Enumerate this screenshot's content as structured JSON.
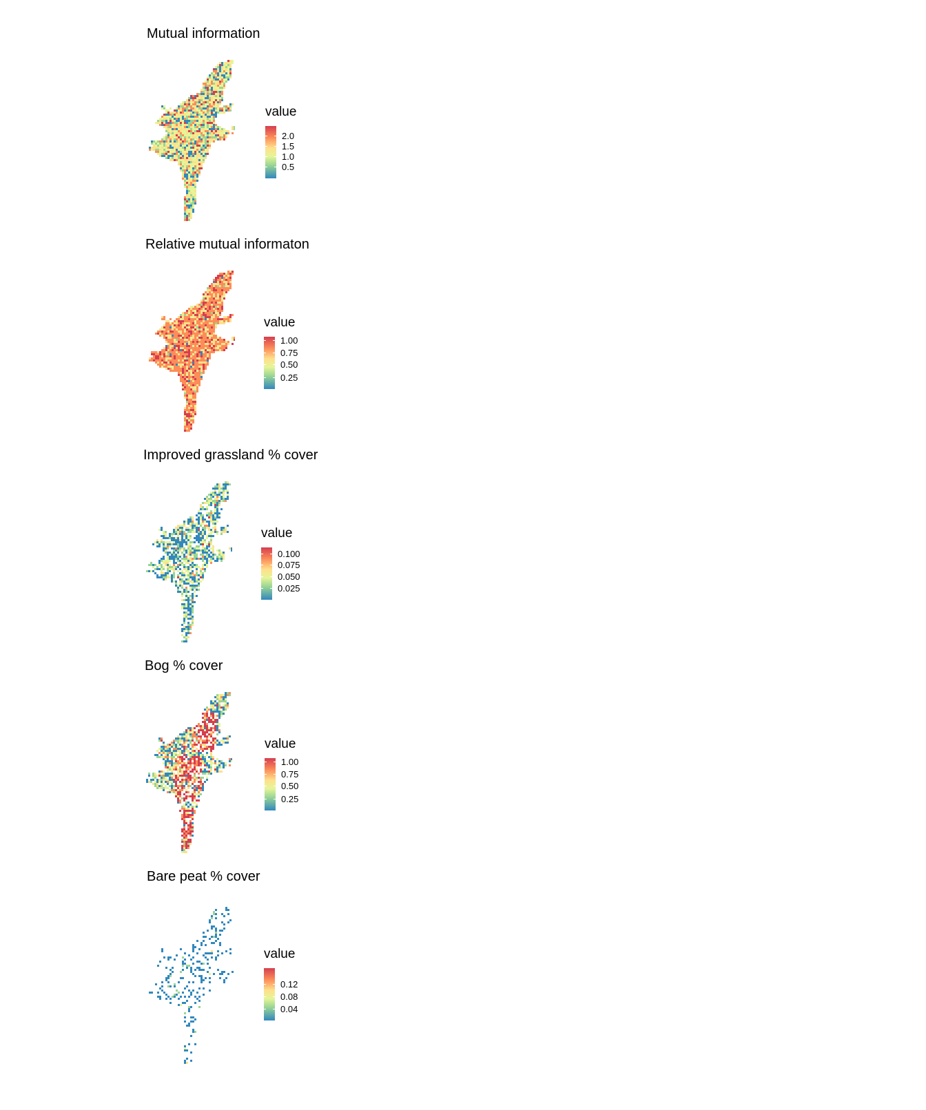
{
  "panels": [
    {
      "title": "Mutual information",
      "legend_title": "value",
      "ticks": [
        "2.0",
        "1.5",
        "1.0",
        "0.5"
      ],
      "tick_fracs": [
        0.81,
        0.62,
        0.42,
        0.22
      ],
      "palette": "RdYlBu-Spectral",
      "style": "mixed"
    },
    {
      "title": "Relative mutual informaton",
      "legend_title": "value",
      "ticks": [
        "1.00",
        "0.75",
        "0.50",
        "0.25"
      ],
      "tick_fracs": [
        0.93,
        0.7,
        0.47,
        0.23
      ],
      "palette": "RdYlBu-Spectral",
      "style": "orange"
    },
    {
      "title": "Improved grassland % cover",
      "legend_title": "value",
      "ticks": [
        "0.100",
        "0.075",
        "0.050",
        "0.025"
      ],
      "tick_fracs": [
        0.88,
        0.67,
        0.45,
        0.22
      ],
      "palette": "RdYlBu-Spectral",
      "style": "bluegreen"
    },
    {
      "title": "Bog % cover",
      "legend_title": "value",
      "ticks": [
        "1.00",
        "0.75",
        "0.50",
        "0.25"
      ],
      "tick_fracs": [
        0.93,
        0.7,
        0.47,
        0.23
      ],
      "palette": "RdYlBu-Spectral",
      "style": "bog"
    },
    {
      "title": "Bare peat % cover",
      "legend_title": "value",
      "ticks": [
        "0.12",
        "0.08",
        "0.04"
      ],
      "tick_fracs": [
        0.7,
        0.46,
        0.22
      ],
      "palette": "RdYlBu-Spectral",
      "style": "sparse"
    }
  ],
  "colors": {
    "c1": "#3288bd",
    "c2": "#99d594",
    "c3": "#e6f598",
    "c4": "#fee08b",
    "c5": "#fc8d59",
    "c6": "#d53e4f"
  }
}
